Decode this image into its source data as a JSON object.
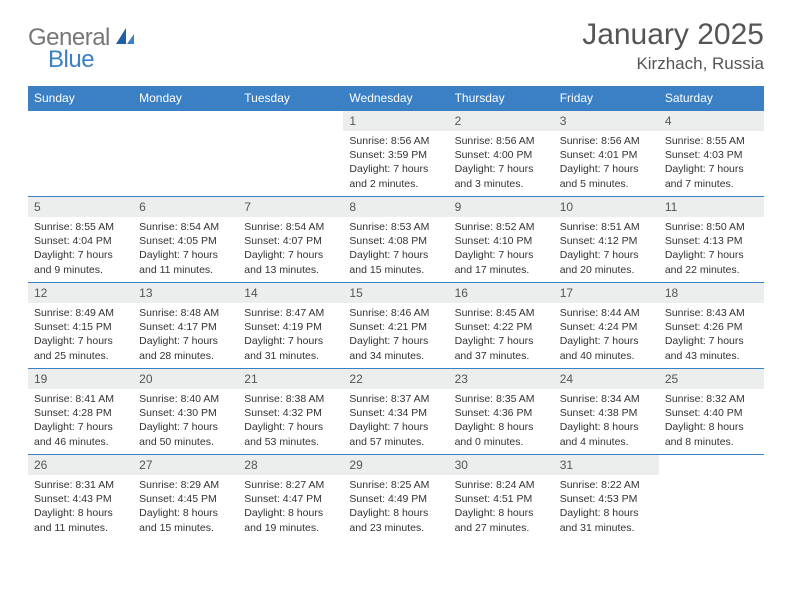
{
  "logo": {
    "general": "General",
    "blue": "Blue"
  },
  "title": "January 2025",
  "location": "Kirzhach, Russia",
  "colors": {
    "header_bg": "#3b7fc4",
    "header_text": "#ffffff",
    "daynum_bg": "#eceded",
    "border": "#3b7fc4",
    "page_bg": "#ffffff",
    "body_text": "#333333",
    "title_text": "#555555"
  },
  "day_headers": [
    "Sunday",
    "Monday",
    "Tuesday",
    "Wednesday",
    "Thursday",
    "Friday",
    "Saturday"
  ],
  "weeks": [
    [
      {
        "n": "",
        "lines": []
      },
      {
        "n": "",
        "lines": []
      },
      {
        "n": "",
        "lines": []
      },
      {
        "n": "1",
        "lines": [
          "Sunrise: 8:56 AM",
          "Sunset: 3:59 PM",
          "Daylight: 7 hours",
          "and 2 minutes."
        ]
      },
      {
        "n": "2",
        "lines": [
          "Sunrise: 8:56 AM",
          "Sunset: 4:00 PM",
          "Daylight: 7 hours",
          "and 3 minutes."
        ]
      },
      {
        "n": "3",
        "lines": [
          "Sunrise: 8:56 AM",
          "Sunset: 4:01 PM",
          "Daylight: 7 hours",
          "and 5 minutes."
        ]
      },
      {
        "n": "4",
        "lines": [
          "Sunrise: 8:55 AM",
          "Sunset: 4:03 PM",
          "Daylight: 7 hours",
          "and 7 minutes."
        ]
      }
    ],
    [
      {
        "n": "5",
        "lines": [
          "Sunrise: 8:55 AM",
          "Sunset: 4:04 PM",
          "Daylight: 7 hours",
          "and 9 minutes."
        ]
      },
      {
        "n": "6",
        "lines": [
          "Sunrise: 8:54 AM",
          "Sunset: 4:05 PM",
          "Daylight: 7 hours",
          "and 11 minutes."
        ]
      },
      {
        "n": "7",
        "lines": [
          "Sunrise: 8:54 AM",
          "Sunset: 4:07 PM",
          "Daylight: 7 hours",
          "and 13 minutes."
        ]
      },
      {
        "n": "8",
        "lines": [
          "Sunrise: 8:53 AM",
          "Sunset: 4:08 PM",
          "Daylight: 7 hours",
          "and 15 minutes."
        ]
      },
      {
        "n": "9",
        "lines": [
          "Sunrise: 8:52 AM",
          "Sunset: 4:10 PM",
          "Daylight: 7 hours",
          "and 17 minutes."
        ]
      },
      {
        "n": "10",
        "lines": [
          "Sunrise: 8:51 AM",
          "Sunset: 4:12 PM",
          "Daylight: 7 hours",
          "and 20 minutes."
        ]
      },
      {
        "n": "11",
        "lines": [
          "Sunrise: 8:50 AM",
          "Sunset: 4:13 PM",
          "Daylight: 7 hours",
          "and 22 minutes."
        ]
      }
    ],
    [
      {
        "n": "12",
        "lines": [
          "Sunrise: 8:49 AM",
          "Sunset: 4:15 PM",
          "Daylight: 7 hours",
          "and 25 minutes."
        ]
      },
      {
        "n": "13",
        "lines": [
          "Sunrise: 8:48 AM",
          "Sunset: 4:17 PM",
          "Daylight: 7 hours",
          "and 28 minutes."
        ]
      },
      {
        "n": "14",
        "lines": [
          "Sunrise: 8:47 AM",
          "Sunset: 4:19 PM",
          "Daylight: 7 hours",
          "and 31 minutes."
        ]
      },
      {
        "n": "15",
        "lines": [
          "Sunrise: 8:46 AM",
          "Sunset: 4:21 PM",
          "Daylight: 7 hours",
          "and 34 minutes."
        ]
      },
      {
        "n": "16",
        "lines": [
          "Sunrise: 8:45 AM",
          "Sunset: 4:22 PM",
          "Daylight: 7 hours",
          "and 37 minutes."
        ]
      },
      {
        "n": "17",
        "lines": [
          "Sunrise: 8:44 AM",
          "Sunset: 4:24 PM",
          "Daylight: 7 hours",
          "and 40 minutes."
        ]
      },
      {
        "n": "18",
        "lines": [
          "Sunrise: 8:43 AM",
          "Sunset: 4:26 PM",
          "Daylight: 7 hours",
          "and 43 minutes."
        ]
      }
    ],
    [
      {
        "n": "19",
        "lines": [
          "Sunrise: 8:41 AM",
          "Sunset: 4:28 PM",
          "Daylight: 7 hours",
          "and 46 minutes."
        ]
      },
      {
        "n": "20",
        "lines": [
          "Sunrise: 8:40 AM",
          "Sunset: 4:30 PM",
          "Daylight: 7 hours",
          "and 50 minutes."
        ]
      },
      {
        "n": "21",
        "lines": [
          "Sunrise: 8:38 AM",
          "Sunset: 4:32 PM",
          "Daylight: 7 hours",
          "and 53 minutes."
        ]
      },
      {
        "n": "22",
        "lines": [
          "Sunrise: 8:37 AM",
          "Sunset: 4:34 PM",
          "Daylight: 7 hours",
          "and 57 minutes."
        ]
      },
      {
        "n": "23",
        "lines": [
          "Sunrise: 8:35 AM",
          "Sunset: 4:36 PM",
          "Daylight: 8 hours",
          "and 0 minutes."
        ]
      },
      {
        "n": "24",
        "lines": [
          "Sunrise: 8:34 AM",
          "Sunset: 4:38 PM",
          "Daylight: 8 hours",
          "and 4 minutes."
        ]
      },
      {
        "n": "25",
        "lines": [
          "Sunrise: 8:32 AM",
          "Sunset: 4:40 PM",
          "Daylight: 8 hours",
          "and 8 minutes."
        ]
      }
    ],
    [
      {
        "n": "26",
        "lines": [
          "Sunrise: 8:31 AM",
          "Sunset: 4:43 PM",
          "Daylight: 8 hours",
          "and 11 minutes."
        ]
      },
      {
        "n": "27",
        "lines": [
          "Sunrise: 8:29 AM",
          "Sunset: 4:45 PM",
          "Daylight: 8 hours",
          "and 15 minutes."
        ]
      },
      {
        "n": "28",
        "lines": [
          "Sunrise: 8:27 AM",
          "Sunset: 4:47 PM",
          "Daylight: 8 hours",
          "and 19 minutes."
        ]
      },
      {
        "n": "29",
        "lines": [
          "Sunrise: 8:25 AM",
          "Sunset: 4:49 PM",
          "Daylight: 8 hours",
          "and 23 minutes."
        ]
      },
      {
        "n": "30",
        "lines": [
          "Sunrise: 8:24 AM",
          "Sunset: 4:51 PM",
          "Daylight: 8 hours",
          "and 27 minutes."
        ]
      },
      {
        "n": "31",
        "lines": [
          "Sunrise: 8:22 AM",
          "Sunset: 4:53 PM",
          "Daylight: 8 hours",
          "and 31 minutes."
        ]
      },
      {
        "n": "",
        "lines": []
      }
    ]
  ]
}
